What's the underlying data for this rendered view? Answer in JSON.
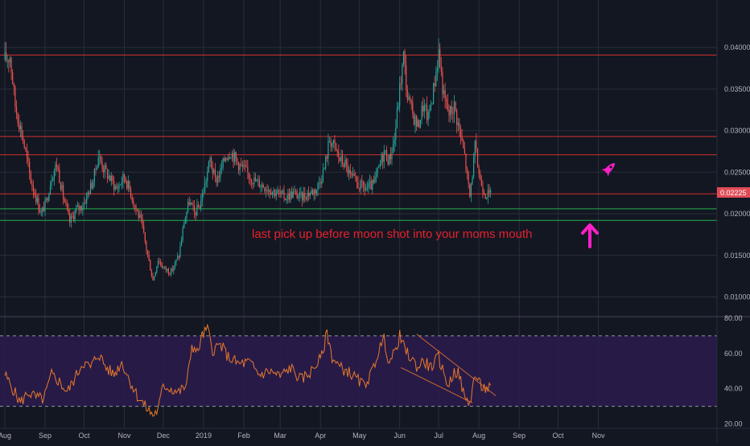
{
  "chart_data": [
    {
      "type": "candlestick",
      "panel": "price",
      "ylim": [
        0.0085,
        0.0433
      ],
      "y_ticks": [
        "0.04000",
        "0.03500",
        "0.03000",
        "0.02500",
        "0.02000",
        "0.01500",
        "0.01000"
      ],
      "y_tick_values": [
        0.04,
        0.035,
        0.03,
        0.025,
        0.02,
        0.015,
        0.01
      ],
      "x_ticks": [
        "Aug",
        "Sep",
        "Oct",
        "Nov",
        "Dec",
        "2019",
        "Feb",
        "Mar",
        "Apr",
        "May",
        "Jun",
        "Jul",
        "Aug",
        "Sep",
        "Oct",
        "Nov"
      ],
      "x_tick_index": [
        0,
        31,
        61,
        92,
        122,
        153,
        184,
        212,
        243,
        273,
        304,
        334,
        365,
        396,
        426,
        457
      ],
      "last_price_label": "0.02225",
      "last_price": 0.02225,
      "horizontal_lines": [
        {
          "value": 0.0391,
          "color": "#d32f2f"
        },
        {
          "value": 0.0293,
          "color": "#d32f2f"
        },
        {
          "value": 0.0271,
          "color": "#d32f2f"
        },
        {
          "value": 0.0224,
          "color": "#d32f2f"
        },
        {
          "value": 0.0206,
          "color": "#22b14c"
        },
        {
          "value": 0.0192,
          "color": "#22b14c"
        }
      ],
      "close_path": [
        [
          0,
          0.0385
        ],
        [
          4,
          0.039
        ],
        [
          8,
          0.033
        ],
        [
          14,
          0.029
        ],
        [
          20,
          0.024
        ],
        [
          24,
          0.022
        ],
        [
          28,
          0.02
        ],
        [
          32,
          0.0215
        ],
        [
          36,
          0.0245
        ],
        [
          40,
          0.026
        ],
        [
          45,
          0.022
        ],
        [
          50,
          0.019
        ],
        [
          55,
          0.0205
        ],
        [
          60,
          0.021
        ],
        [
          64,
          0.0225
        ],
        [
          68,
          0.024
        ],
        [
          72,
          0.027
        ],
        [
          76,
          0.0255
        ],
        [
          80,
          0.0245
        ],
        [
          86,
          0.023
        ],
        [
          92,
          0.0245
        ],
        [
          96,
          0.023
        ],
        [
          100,
          0.021
        ],
        [
          105,
          0.019
        ],
        [
          110,
          0.015
        ],
        [
          114,
          0.012
        ],
        [
          118,
          0.0145
        ],
        [
          122,
          0.0135
        ],
        [
          128,
          0.013
        ],
        [
          134,
          0.015
        ],
        [
          138,
          0.019
        ],
        [
          142,
          0.0215
        ],
        [
          146,
          0.02
        ],
        [
          150,
          0.021
        ],
        [
          154,
          0.0235
        ],
        [
          158,
          0.0265
        ],
        [
          162,
          0.024
        ],
        [
          166,
          0.025
        ],
        [
          170,
          0.027
        ],
        [
          174,
          0.0275
        ],
        [
          180,
          0.026
        ],
        [
          186,
          0.025
        ],
        [
          192,
          0.024
        ],
        [
          198,
          0.0235
        ],
        [
          204,
          0.023
        ],
        [
          210,
          0.0225
        ],
        [
          216,
          0.022
        ],
        [
          222,
          0.0225
        ],
        [
          228,
          0.022
        ],
        [
          234,
          0.0225
        ],
        [
          240,
          0.023
        ],
        [
          246,
          0.0255
        ],
        [
          250,
          0.029
        ],
        [
          254,
          0.028
        ],
        [
          258,
          0.0265
        ],
        [
          262,
          0.026
        ],
        [
          266,
          0.0245
        ],
        [
          272,
          0.0235
        ],
        [
          278,
          0.023
        ],
        [
          284,
          0.0235
        ],
        [
          288,
          0.0255
        ],
        [
          292,
          0.0275
        ],
        [
          296,
          0.0265
        ],
        [
          300,
          0.029
        ],
        [
          304,
          0.035
        ],
        [
          307,
          0.039
        ],
        [
          310,
          0.034
        ],
        [
          314,
          0.032
        ],
        [
          318,
          0.0305
        ],
        [
          322,
          0.033
        ],
        [
          326,
          0.0315
        ],
        [
          330,
          0.035
        ],
        [
          334,
          0.0395
        ],
        [
          338,
          0.034
        ],
        [
          342,
          0.032
        ],
        [
          346,
          0.033
        ],
        [
          350,
          0.03
        ],
        [
          354,
          0.027
        ],
        [
          358,
          0.022
        ],
        [
          362,
          0.028
        ],
        [
          366,
          0.024
        ],
        [
          370,
          0.0225
        ],
        [
          374,
          0.0222
        ]
      ]
    },
    {
      "type": "line",
      "panel": "rsi",
      "ylim": [
        18,
        80
      ],
      "y_ticks": [
        "80.00",
        "60.00",
        "40.00",
        "20.00"
      ],
      "y_tick_values": [
        80,
        60,
        40,
        20
      ],
      "band_upper": 70,
      "band_lower": 30,
      "series": [
        {
          "color": "#e8792b",
          "points": [
            [
              0,
              48
            ],
            [
              6,
              40
            ],
            [
              12,
              32
            ],
            [
              18,
              38
            ],
            [
              24,
              35
            ],
            [
              30,
              34
            ],
            [
              36,
              48
            ],
            [
              42,
              44
            ],
            [
              48,
              38
            ],
            [
              54,
              46
            ],
            [
              60,
              55
            ],
            [
              66,
              52
            ],
            [
              72,
              60
            ],
            [
              78,
              52
            ],
            [
              84,
              48
            ],
            [
              90,
              55
            ],
            [
              96,
              45
            ],
            [
              102,
              36
            ],
            [
              108,
              30
            ],
            [
              114,
              25
            ],
            [
              118,
              28
            ],
            [
              122,
              42
            ],
            [
              128,
              40
            ],
            [
              134,
              38
            ],
            [
              140,
              42
            ],
            [
              144,
              65
            ],
            [
              148,
              60
            ],
            [
              152,
              70
            ],
            [
              156,
              74
            ],
            [
              160,
              62
            ],
            [
              166,
              65
            ],
            [
              172,
              58
            ],
            [
              180,
              54
            ],
            [
              188,
              55
            ],
            [
              196,
              48
            ],
            [
              204,
              50
            ],
            [
              212,
              47
            ],
            [
              220,
              52
            ],
            [
              228,
              45
            ],
            [
              236,
              50
            ],
            [
              244,
              58
            ],
            [
              248,
              72
            ],
            [
              252,
              58
            ],
            [
              258,
              52
            ],
            [
              264,
              50
            ],
            [
              270,
              46
            ],
            [
              276,
              42
            ],
            [
              282,
              48
            ],
            [
              288,
              62
            ],
            [
              292,
              68
            ],
            [
              296,
              55
            ],
            [
              300,
              60
            ],
            [
              304,
              70
            ],
            [
              308,
              62
            ],
            [
              312,
              58
            ],
            [
              318,
              52
            ],
            [
              322,
              56
            ],
            [
              328,
              52
            ],
            [
              334,
              58
            ],
            [
              338,
              48
            ],
            [
              342,
              42
            ],
            [
              346,
              50
            ],
            [
              350,
              48
            ],
            [
              354,
              34
            ],
            [
              358,
              32
            ],
            [
              362,
              48
            ],
            [
              366,
              42
            ],
            [
              370,
              40
            ],
            [
              374,
              40
            ]
          ]
        }
      ],
      "trend_lines": [
        {
          "from": [
            317,
            71
          ],
          "to": [
            378,
            36
          ]
        },
        {
          "from": [
            305,
            52
          ],
          "to": [
            360,
            32
          ]
        }
      ]
    }
  ],
  "annotation": {
    "text": "last pick up before moon shot into your moms mouth",
    "color": "#e8202d"
  },
  "markers": {
    "rocket": "rocket-icon",
    "arrow": "up-arrow-icon",
    "marker_color": "#ff1fc7"
  },
  "colors": {
    "background": "#131722",
    "grid": "#2a2e39",
    "bull": "#26a69a",
    "bear": "#ef5350",
    "rsi_fill": "#2b1b4d"
  }
}
